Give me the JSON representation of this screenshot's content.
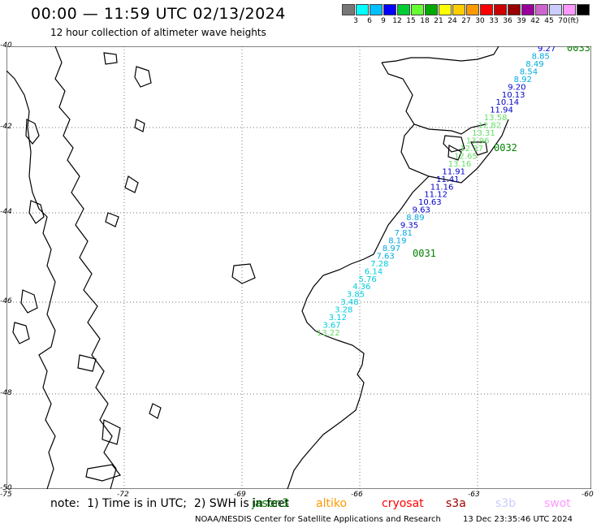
{
  "header": {
    "title": "00:00 — 11:59 UTC 02/13/2024",
    "subtitle": "12 hour collection of altimeter wave heights"
  },
  "legend": {
    "unit": "(ft)",
    "items": [
      {
        "label": "",
        "color": "#777777"
      },
      {
        "label": "3",
        "color": "#00ffff"
      },
      {
        "label": "6",
        "color": "#00bfff"
      },
      {
        "label": "9",
        "color": "#0000ff"
      },
      {
        "label": "12",
        "color": "#00cc33"
      },
      {
        "label": "15",
        "color": "#66ff33"
      },
      {
        "label": "18",
        "color": "#00aa00"
      },
      {
        "label": "21",
        "color": "#ffff00"
      },
      {
        "label": "24",
        "color": "#ffcc00"
      },
      {
        "label": "27",
        "color": "#ff9900"
      },
      {
        "label": "30",
        "color": "#ff0000"
      },
      {
        "label": "33",
        "color": "#cc0000"
      },
      {
        "label": "36",
        "color": "#990000"
      },
      {
        "label": "39",
        "color": "#990099"
      },
      {
        "label": "42",
        "color": "#cc66cc"
      },
      {
        "label": "45",
        "color": "#ccccff"
      },
      {
        "label": "70",
        "color": "#ff99ff"
      },
      {
        "label": "",
        "color": "#000000"
      }
    ]
  },
  "axes": {
    "lat_labels": [
      "-40",
      "-42",
      "-44",
      "-46",
      "-48",
      "-50"
    ],
    "lon_labels": [
      "-75",
      "-72",
      "-69",
      "-66",
      "-63",
      "-60"
    ]
  },
  "passes": [
    {
      "label": "0033",
      "color": "#008000"
    },
    {
      "label": "0032",
      "color": "#008000"
    },
    {
      "label": "0031",
      "color": "#008000"
    }
  ],
  "observations": [
    {
      "value": "9.27",
      "color": "#0000cc"
    },
    {
      "value": "8.85",
      "color": "#00aadd"
    },
    {
      "value": "8.49",
      "color": "#00aadd"
    },
    {
      "value": "8.54",
      "color": "#00aadd"
    },
    {
      "value": "8.92",
      "color": "#00aadd"
    },
    {
      "value": "9.20",
      "color": "#0000cc"
    },
    {
      "value": "10.13",
      "color": "#0000cc"
    },
    {
      "value": "10.14",
      "color": "#0000cc"
    },
    {
      "value": "11.94",
      "color": "#0000cc"
    },
    {
      "value": "13.58",
      "color": "#66dd66"
    },
    {
      "value": "12.82",
      "color": "#66dd66"
    },
    {
      "value": "13.31",
      "color": "#66dd66"
    },
    {
      "value": "13.96",
      "color": "#66dd66"
    },
    {
      "value": "12.37",
      "color": "#66dd66"
    },
    {
      "value": "12.65",
      "color": "#66dd66"
    },
    {
      "value": "13.16",
      "color": "#66dd66"
    },
    {
      "value": "11.91",
      "color": "#0000cc"
    },
    {
      "value": "11.41",
      "color": "#0000cc"
    },
    {
      "value": "11.16",
      "color": "#0000cc"
    },
    {
      "value": "11.12",
      "color": "#0000cc"
    },
    {
      "value": "10.63",
      "color": "#0000cc"
    },
    {
      "value": "9.63",
      "color": "#0000cc"
    },
    {
      "value": "8.89",
      "color": "#00aadd"
    },
    {
      "value": "9.35",
      "color": "#0000cc"
    },
    {
      "value": "7.81",
      "color": "#00aadd"
    },
    {
      "value": "8.19",
      "color": "#00aadd"
    },
    {
      "value": "8.97",
      "color": "#00aadd"
    },
    {
      "value": "7.63",
      "color": "#00aadd"
    },
    {
      "value": "7.28",
      "color": "#00ccdd"
    },
    {
      "value": "6.14",
      "color": "#00ccdd"
    },
    {
      "value": "5.76",
      "color": "#00ccdd"
    },
    {
      "value": "4.36",
      "color": "#00ccdd"
    },
    {
      "value": "3.85",
      "color": "#00ccdd"
    },
    {
      "value": "3.48",
      "color": "#00ccdd"
    },
    {
      "value": "3.28",
      "color": "#00ccdd"
    },
    {
      "value": "3.12",
      "color": "#00ccdd"
    },
    {
      "value": "3.67",
      "color": "#00ccdd"
    },
    {
      "value": "13.22",
      "color": "#66dd66"
    }
  ],
  "footer": {
    "note": "note:  1) Time is in UTC;  2) SWH is in feet",
    "missions": [
      {
        "label": "jason3",
        "color": "#008000"
      },
      {
        "label": "altiko",
        "color": "#ff9900"
      },
      {
        "label": "cryosat",
        "color": "#ff0000"
      },
      {
        "label": "s3a",
        "color": "#990000"
      },
      {
        "label": "s3b",
        "color": "#ccccff"
      },
      {
        "label": "swot",
        "color": "#ff99ff"
      }
    ],
    "credit": "NOAA/NESDIS Center for Satellite Applications and Research",
    "timestamp": "13 Dec 23:35:46 UTC 2024"
  }
}
